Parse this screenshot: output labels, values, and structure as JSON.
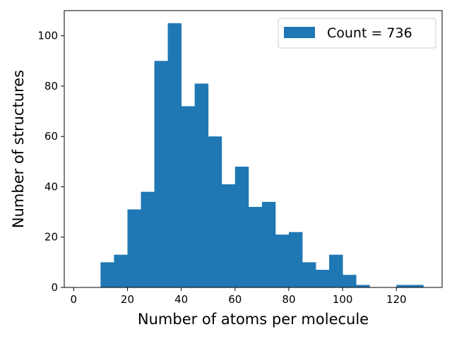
{
  "chart_data": {
    "type": "bar",
    "bin_width": 5,
    "bin_starts": [
      10,
      15,
      20,
      25,
      30,
      35,
      40,
      45,
      50,
      55,
      60,
      65,
      70,
      75,
      80,
      85,
      90,
      95,
      100,
      105,
      110,
      115,
      120,
      125
    ],
    "values": [
      10,
      13,
      31,
      38,
      90,
      105,
      72,
      81,
      60,
      41,
      48,
      32,
      34,
      21,
      22,
      10,
      7,
      13,
      5,
      1,
      0,
      0,
      1,
      1
    ],
    "color": "#1f77b4",
    "xlabel": "Number of atoms per molecule",
    "ylabel": "Number of structures",
    "xlim": [
      -3.5,
      137
    ],
    "ylim": [
      0,
      110
    ],
    "xticks": [
      0,
      20,
      40,
      60,
      80,
      100,
      120
    ],
    "yticks": [
      0,
      20,
      40,
      60,
      80,
      100
    ],
    "legend": {
      "label": "Count = 736",
      "placement": "top-right"
    },
    "grid": false
  }
}
